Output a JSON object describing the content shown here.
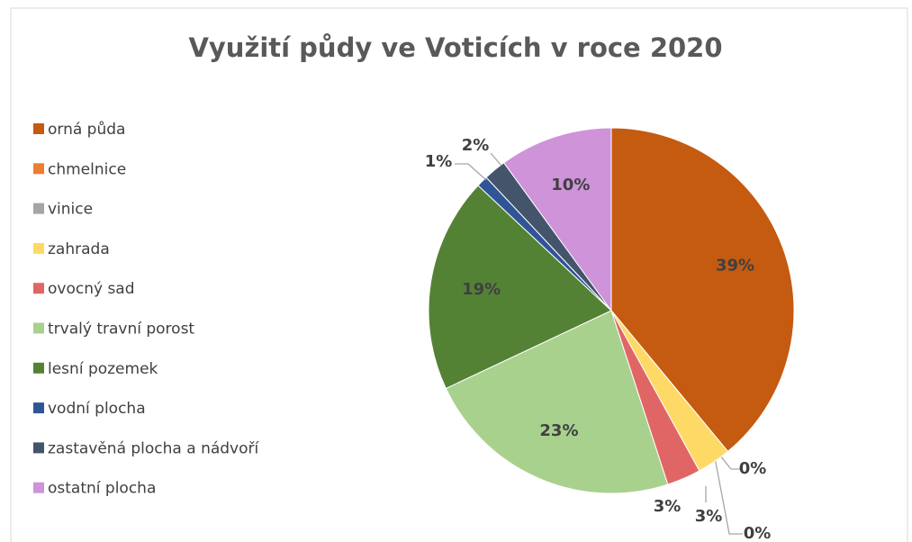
{
  "chart_data": {
    "type": "pie",
    "title": "Využití půdy ve Voticích v roce 2020",
    "categories": [
      "orná půda",
      "chmelnice",
      "vinice",
      "zahrada",
      "ovocný sad",
      "trvalý travní porost",
      "lesní pozemek",
      "vodní plocha",
      "zastavěná plocha a nádvoří",
      "ostatní plocha"
    ],
    "values": [
      39,
      0,
      0,
      3,
      3,
      23,
      19,
      1,
      2,
      10
    ],
    "value_labels": [
      "39%",
      "0%",
      "0%",
      "3%",
      "3%",
      "23%",
      "19%",
      "1%",
      "2%",
      "10%"
    ],
    "colors": [
      "#C55A11",
      "#ED7D31",
      "#A5A5A5",
      "#FFD966",
      "#E06666",
      "#A9D18E",
      "#548235",
      "#2F5597",
      "#44546A",
      "#CE93D8"
    ],
    "legend": "left"
  }
}
